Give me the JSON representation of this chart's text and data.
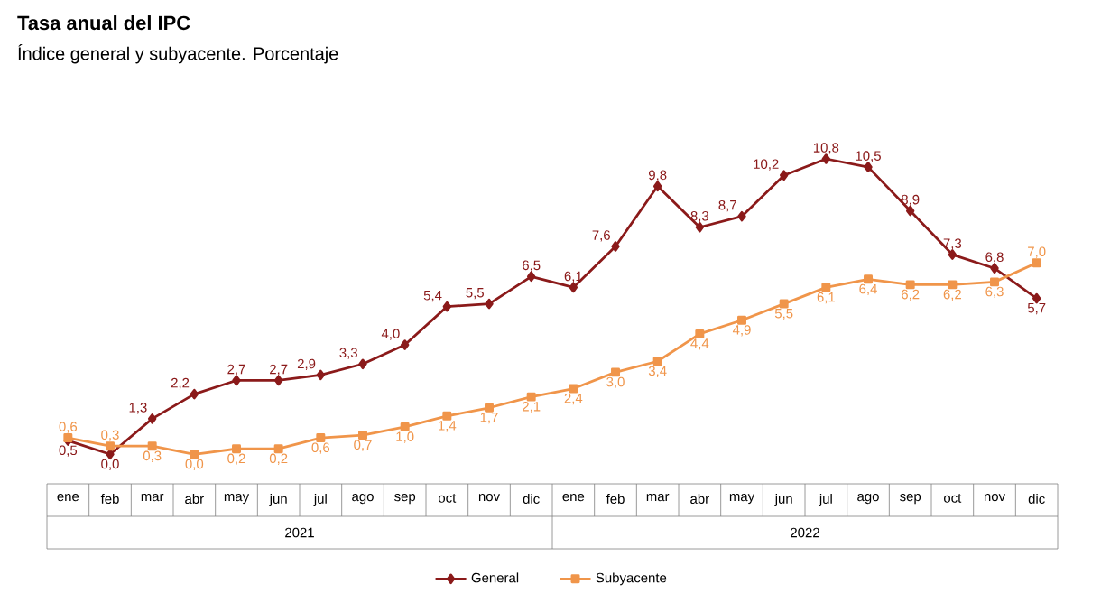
{
  "chart_data": {
    "type": "line",
    "title": "Tasa anual del IPC",
    "subtitle": "Índice general y subyacente. Porcentaje",
    "categories": [
      "ene",
      "feb",
      "mar",
      "abr",
      "may",
      "jun",
      "jul",
      "ago",
      "sep",
      "oct",
      "nov",
      "dic",
      "ene",
      "feb",
      "mar",
      "abr",
      "may",
      "jun",
      "jul",
      "ago",
      "sep",
      "oct",
      "nov",
      "dic"
    ],
    "annotations": [
      "2021",
      "2022"
    ],
    "series": [
      {
        "name": "General",
        "color": "#8b1a1a",
        "marker": "diamond",
        "values": [
          0.5,
          0.0,
          1.3,
          2.2,
          2.7,
          2.7,
          2.9,
          3.3,
          4.0,
          5.4,
          5.5,
          6.5,
          6.1,
          7.6,
          9.8,
          8.3,
          8.7,
          10.2,
          10.8,
          10.5,
          8.9,
          7.3,
          6.8,
          5.7
        ],
        "value_labels": [
          "0,5",
          "0,0",
          "1,3",
          "2,2",
          "2,7",
          "2,7",
          "2,9",
          "3,3",
          "4,0",
          "5,4",
          "5,5",
          "6,5",
          "6,1",
          "7,6",
          "9,8",
          "8,3",
          "8,7",
          "10,2",
          "10,8",
          "10,5",
          "8,9",
          "7,3",
          "6,8",
          "5,7"
        ]
      },
      {
        "name": "Subyacente",
        "color": "#f0954a",
        "marker": "square",
        "values": [
          0.6,
          0.3,
          0.3,
          0.0,
          0.2,
          0.2,
          0.6,
          0.7,
          1.0,
          1.4,
          1.7,
          2.1,
          2.4,
          3.0,
          3.4,
          4.4,
          4.9,
          5.5,
          6.1,
          6.4,
          6.2,
          6.2,
          6.3,
          7.0
        ],
        "value_labels": [
          "0,6",
          "0,3",
          "0,3",
          "0,0",
          "0,2",
          "0,2",
          "0,6",
          "0,7",
          "1,0",
          "1,4",
          "1,7",
          "2,1",
          "2,4",
          "3,0",
          "3,4",
          "4,4",
          "4,9",
          "5,5",
          "6,1",
          "6,4",
          "6,2",
          "6,2",
          "6,3",
          "7,0"
        ]
      }
    ],
    "legend": "bottom",
    "grid": false
  }
}
